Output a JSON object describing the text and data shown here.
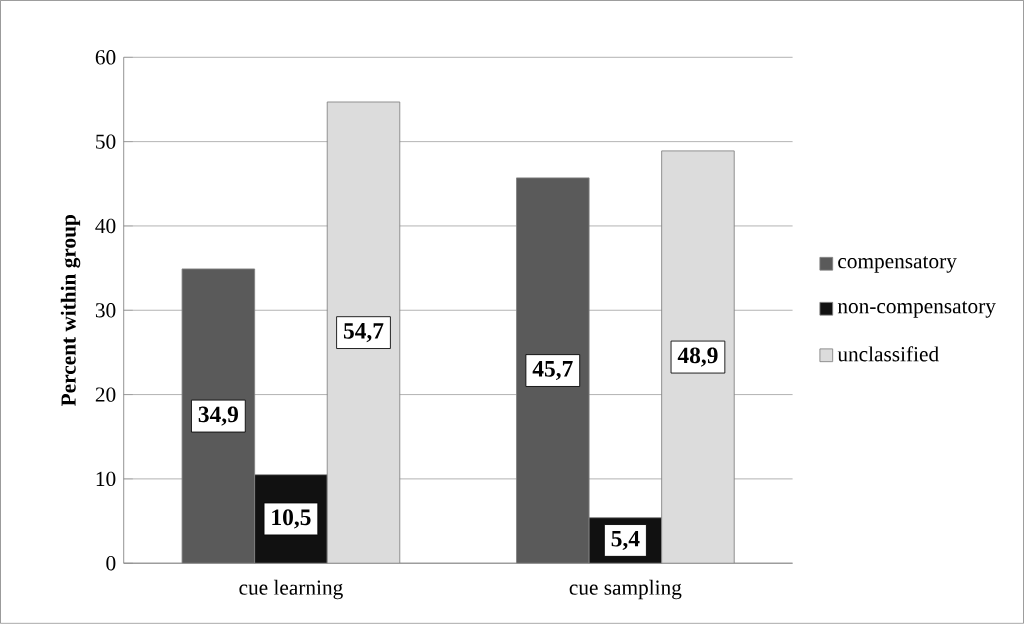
{
  "chart_data": {
    "type": "bar",
    "ylabel": "Percent within group",
    "categories": [
      "cue learning",
      "cue sampling"
    ],
    "series": [
      {
        "name": "compensatory",
        "color": "#5a5a5a",
        "values": [
          34.9,
          45.7
        ],
        "value_labels": [
          "34,9",
          "45,7"
        ]
      },
      {
        "name": "non-compensatory",
        "color": "#111111",
        "values": [
          10.5,
          5.4
        ],
        "value_labels": [
          "10,5",
          "5,4"
        ]
      },
      {
        "name": "unclassified",
        "color": "#dcdcdc",
        "values": [
          54.7,
          48.9
        ],
        "value_labels": [
          "54,7",
          "48,9"
        ]
      }
    ],
    "ylim": [
      0,
      60
    ],
    "yticks": [
      0,
      10,
      20,
      30,
      40,
      50,
      60
    ],
    "grid": "y",
    "legend": "right"
  }
}
